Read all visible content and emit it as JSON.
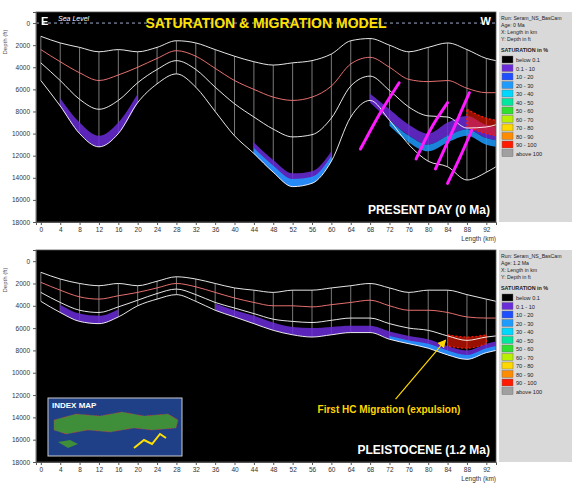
{
  "chart_data": [
    {
      "type": "line",
      "title": "SATURATION & MIGRATION MODEL",
      "corner_labels": [
        "E",
        "W"
      ],
      "subtitle": "PRESENT DAY (0 Ma)",
      "xlabel": "Length (km)",
      "ylabel": "Depth (ft)",
      "sea_level": {
        "label": "Sea Level",
        "value": 0
      },
      "info": [
        "Run: Seram_NS_BasCam",
        "Age: 0 Ma",
        "X: Length in km",
        "Y: Depth in ft"
      ],
      "legend_title": "SATURATION in %",
      "color_scale": {
        "labels": [
          "below 0.1",
          "0.1 - 10",
          "10 - 20",
          "20 - 30",
          "30 - 40",
          "40 - 50",
          "50 - 60",
          "60 - 70",
          "70 - 80",
          "80 - 90",
          "90 - 100",
          "above 100"
        ],
        "colors": [
          "#000000",
          "#6a2bd8",
          "#1e50ff",
          "#1e9bff",
          "#00d8ff",
          "#00e8a0",
          "#30e030",
          "#b8f000",
          "#ffd800",
          "#ff8c00",
          "#ff1a00",
          "#a0a0a0"
        ]
      },
      "x": [
        0,
        4,
        8,
        12,
        16,
        20,
        24,
        28,
        32,
        36,
        40,
        44,
        48,
        52,
        56,
        60,
        64,
        68,
        72,
        76,
        80,
        84,
        88,
        92,
        94
      ],
      "xlim": [
        -1,
        94
      ],
      "xticks": [
        0,
        4,
        8,
        12,
        16,
        20,
        24,
        28,
        32,
        36,
        40,
        44,
        48,
        52,
        56,
        60,
        64,
        68,
        72,
        76,
        80,
        84,
        88,
        92
      ],
      "ylim": [
        -1000,
        18000
      ],
      "yticks": [
        0,
        2000,
        4000,
        6000,
        8000,
        10000,
        12000,
        14000,
        16000,
        18000
      ],
      "series": [
        {
          "type": "line",
          "color": "#ffffff",
          "values": [
            1200,
            1800,
            2200,
            2600,
            2400,
            2600,
            2200,
            1600,
            1800,
            2400,
            3000,
            3500,
            3800,
            3600,
            3400,
            2800,
            1600,
            1400,
            2000,
            2600,
            2200,
            1800,
            2400,
            3200,
            3400
          ]
        },
        {
          "type": "line",
          "color": "#ff7a7a",
          "values": [
            2400,
            3500,
            4500,
            5200,
            4700,
            4000,
            3200,
            2500,
            3000,
            4100,
            5200,
            6000,
            6700,
            7000,
            6700,
            5700,
            3700,
            3100,
            4000,
            5100,
            5300,
            5200,
            5900,
            6300,
            6300
          ]
        },
        {
          "type": "line",
          "color": "#ffffff",
          "values": [
            3600,
            5200,
            6900,
            7800,
            7000,
            5400,
            4200,
            3400,
            4200,
            5800,
            7300,
            8500,
            9600,
            10300,
            10100,
            8600,
            5700,
            4800,
            6100,
            7600,
            8400,
            8500,
            9500,
            9400,
            9200
          ]
        },
        {
          "type": "line",
          "color": "#ffffff",
          "values": [
            5200,
            7500,
            10000,
            11200,
            10000,
            7200,
            5500,
            4600,
            5800,
            8000,
            10200,
            11800,
            13500,
            14800,
            14500,
            12500,
            8500,
            7000,
            8800,
            11000,
            12500,
            13000,
            14200,
            13500,
            13000
          ]
        },
        {
          "type": "area",
          "color": "#6a2bd8",
          "values": [
            null,
            6800,
            9000,
            10200,
            9000,
            6400,
            null,
            null,
            null,
            null,
            null,
            10800,
            12400,
            13600,
            13400,
            11600,
            null,
            6400,
            7800,
            9200,
            10000,
            9000,
            8400,
            9200,
            9400
          ],
          "lower": [
            null,
            7500,
            10000,
            11200,
            10000,
            7200,
            null,
            null,
            null,
            null,
            null,
            11800,
            13500,
            14800,
            14500,
            12500,
            null,
            7200,
            8800,
            10200,
            11000,
            10200,
            9600,
            10400,
            10600
          ]
        },
        {
          "type": "area",
          "color": "#1e9bff",
          "values": [
            null,
            null,
            null,
            null,
            null,
            null,
            null,
            null,
            null,
            null,
            null,
            11300,
            12900,
            14100,
            13900,
            12000,
            null,
            null,
            8800,
            10200,
            11000,
            10200,
            9600,
            10400,
            10600
          ],
          "lower": [
            null,
            null,
            null,
            null,
            null,
            null,
            null,
            null,
            null,
            null,
            null,
            11800,
            13500,
            14800,
            14500,
            12500,
            null,
            null,
            9300,
            10800,
            11600,
            10800,
            10200,
            11000,
            11200
          ]
        },
        {
          "type": "area",
          "color": "#ff1a00",
          "values": [
            null,
            null,
            null,
            null,
            null,
            null,
            null,
            null,
            null,
            null,
            null,
            null,
            null,
            null,
            null,
            null,
            null,
            null,
            null,
            null,
            null,
            null,
            7800,
            8600,
            8800
          ],
          "lower": [
            null,
            null,
            null,
            null,
            null,
            null,
            null,
            null,
            null,
            null,
            null,
            null,
            null,
            null,
            null,
            null,
            null,
            null,
            null,
            null,
            null,
            null,
            9400,
            10000,
            10200
          ]
        }
      ],
      "faults": [
        {
          "color": "#ff1aff",
          "x": [
            74,
            70,
            66
          ],
          "y": [
            5400,
            8200,
            11400
          ]
        },
        {
          "color": "#ff1aff",
          "x": [
            84,
            80.5,
            77.5
          ],
          "y": [
            7200,
            9600,
            12300
          ]
        },
        {
          "color": "#ff1aff",
          "x": [
            88.5,
            85,
            81.5
          ],
          "y": [
            6300,
            9800,
            13200
          ]
        },
        {
          "color": "#ff1aff",
          "x": [
            89,
            86.5,
            84
          ],
          "y": [
            9700,
            12200,
            14500
          ]
        }
      ]
    },
    {
      "type": "line",
      "subtitle": "PLEISTOCENE (1.2 Ma)",
      "xlabel": "Length (km)",
      "ylabel": "Depth (ft)",
      "info": [
        "Run: Seram_NS_BasCam",
        "Age: 1.2 Ma",
        "X: Length in km",
        "Y: Depth in ft"
      ],
      "legend_title": "SATURATION in %",
      "color_scale": {
        "labels": [
          "below 0.1",
          "0.1 - 10",
          "10 - 20",
          "20 - 30",
          "30 - 40",
          "40 - 50",
          "50 - 60",
          "60 - 70",
          "70 - 80",
          "80 - 90",
          "90 - 100",
          "above 100"
        ],
        "colors": [
          "#000000",
          "#6a2bd8",
          "#1e50ff",
          "#1e9bff",
          "#00d8ff",
          "#00e8a0",
          "#30e030",
          "#b8f000",
          "#ffd800",
          "#ff8c00",
          "#ff1a00",
          "#a0a0a0"
        ]
      },
      "x": [
        0,
        4,
        8,
        12,
        16,
        20,
        24,
        28,
        32,
        36,
        40,
        44,
        48,
        52,
        56,
        60,
        64,
        68,
        72,
        76,
        80,
        84,
        88,
        92,
        94
      ],
      "xlim": [
        -1,
        94
      ],
      "xticks": [
        0,
        4,
        8,
        12,
        16,
        20,
        24,
        28,
        32,
        36,
        40,
        44,
        48,
        52,
        56,
        60,
        64,
        68,
        72,
        76,
        80,
        84,
        88,
        92
      ],
      "ylim": [
        -1000,
        18000
      ],
      "yticks": [
        0,
        2000,
        4000,
        6000,
        8000,
        10000,
        12000,
        14000,
        16000,
        18000
      ],
      "series": [
        {
          "type": "line",
          "color": "#ffffff",
          "values": [
            1000,
            1600,
            2000,
            2200,
            2000,
            2200,
            1800,
            1400,
            1600,
            2000,
            2400,
            2600,
            2800,
            2600,
            2600,
            2400,
            2200,
            2000,
            2400,
            2800,
            2600,
            2600,
            3000,
            3400,
            3600
          ]
        },
        {
          "type": "line",
          "color": "#ff7a7a",
          "values": [
            1900,
            2600,
            3200,
            3400,
            3100,
            2800,
            2400,
            2000,
            2300,
            2800,
            3300,
            3700,
            4000,
            4000,
            4100,
            3900,
            3700,
            3500,
            4000,
            4400,
            4400,
            4600,
            5000,
            5100,
            5100
          ]
        },
        {
          "type": "line",
          "color": "#ffffff",
          "values": [
            2800,
            3700,
            4400,
            4600,
            4100,
            3500,
            2900,
            2500,
            3000,
            3700,
            4200,
            4700,
            5200,
            5400,
            5500,
            5300,
            5100,
            5100,
            5600,
            6000,
            6200,
            6700,
            7100,
            6800,
            6700
          ]
        },
        {
          "type": "line",
          "color": "#ffffff",
          "values": [
            3600,
            4600,
            5400,
            5600,
            5000,
            4000,
            3400,
            3000,
            3600,
            4400,
            5000,
            5600,
            6200,
            6600,
            6800,
            6600,
            6400,
            6400,
            7000,
            7400,
            7800,
            8400,
            8800,
            8200,
            8000
          ]
        },
        {
          "type": "area",
          "color": "#6a2bd8",
          "values": [
            null,
            3900,
            4700,
            4900,
            4300,
            null,
            null,
            null,
            null,
            3800,
            4400,
            4900,
            5500,
            5900,
            6000,
            5900,
            5800,
            5800,
            6300,
            6700,
            7000,
            7600,
            8000,
            7400,
            7200
          ],
          "lower": [
            null,
            4600,
            5400,
            5600,
            5000,
            null,
            null,
            null,
            null,
            4400,
            5000,
            5600,
            6200,
            6600,
            6800,
            6600,
            6400,
            6400,
            7000,
            7400,
            7800,
            8400,
            8800,
            8200,
            8000
          ]
        },
        {
          "type": "area",
          "color": "#1e9bff",
          "values": [
            null,
            null,
            null,
            null,
            null,
            null,
            null,
            null,
            null,
            null,
            null,
            null,
            null,
            null,
            null,
            null,
            null,
            null,
            6700,
            7100,
            7400,
            8000,
            8400,
            7800,
            7600
          ],
          "lower": [
            null,
            null,
            null,
            null,
            null,
            null,
            null,
            null,
            null,
            null,
            null,
            null,
            null,
            null,
            null,
            null,
            null,
            null,
            7000,
            7400,
            7800,
            8400,
            8800,
            8200,
            8000
          ]
        },
        {
          "type": "area",
          "color": "#ff1a00",
          "values": [
            null,
            null,
            null,
            null,
            null,
            null,
            null,
            null,
            null,
            null,
            null,
            null,
            null,
            null,
            null,
            null,
            null,
            null,
            null,
            null,
            null,
            6600,
            6800,
            6600,
            null
          ],
          "lower": [
            null,
            null,
            null,
            null,
            null,
            null,
            null,
            null,
            null,
            null,
            null,
            null,
            null,
            null,
            null,
            null,
            null,
            null,
            null,
            null,
            null,
            7600,
            7800,
            7400,
            null
          ]
        }
      ],
      "annotations": [
        {
          "text": "First HC Migration (expulsion)",
          "x": 84,
          "y": 6800
        }
      ],
      "inset": {
        "title": "INDEX MAP"
      }
    }
  ]
}
